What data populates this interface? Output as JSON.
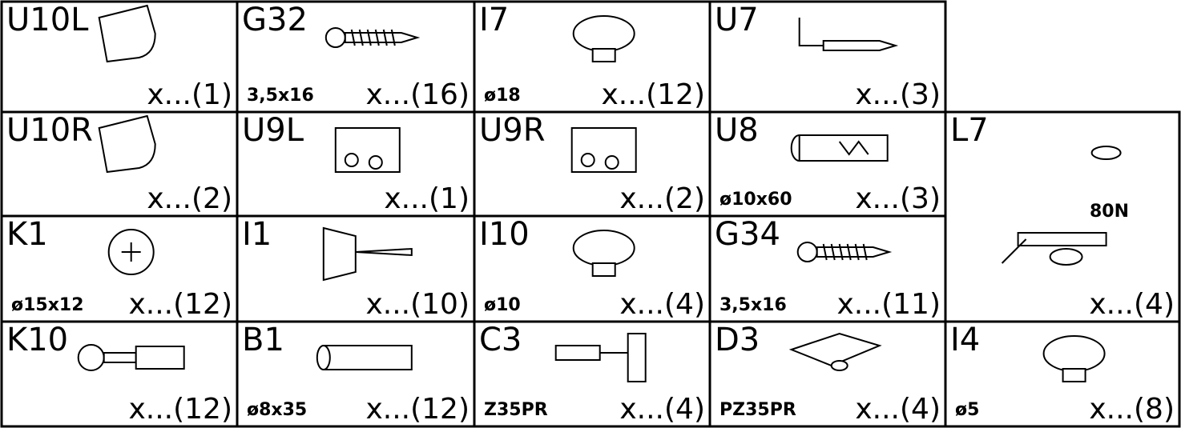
{
  "cells": [
    {
      "code": "U10L",
      "qty": "x...(1)"
    },
    {
      "code": "G32",
      "spec": "3,5x16",
      "qty": "x...(16)"
    },
    {
      "code": "I7",
      "spec": "ø18",
      "qty": "x...(12)"
    },
    {
      "code": "U7",
      "qty": "x...(3)"
    },
    {
      "code": "U10R",
      "qty": "x...(2)"
    },
    {
      "code": "U9L",
      "qty": "x...(1)"
    },
    {
      "code": "U9R",
      "qty": "x...(2)"
    },
    {
      "code": "U8",
      "spec": "ø10x60",
      "qty": "x...(3)"
    },
    {
      "code": "L7",
      "spec": "80N",
      "qty": "x...(4)"
    },
    {
      "code": "K1",
      "spec": "ø15x12",
      "qty": "x...(12)"
    },
    {
      "code": "I1",
      "qty": "x...(10)"
    },
    {
      "code": "I10",
      "spec": "ø10",
      "qty": "x...(4)"
    },
    {
      "code": "G34",
      "spec": "3,5x16",
      "qty": "x...(11)"
    },
    {
      "code": "K10",
      "qty": "x...(12)"
    },
    {
      "code": "B1",
      "spec": "ø8x35",
      "qty": "x...(12)"
    },
    {
      "code": "C3",
      "spec": "Z35PR",
      "qty": "x...(4)"
    },
    {
      "code": "D3",
      "spec": "PZ35PR",
      "qty": "x...(4)"
    },
    {
      "code": "I4",
      "spec": "ø5",
      "qty": "x...(8)"
    }
  ]
}
